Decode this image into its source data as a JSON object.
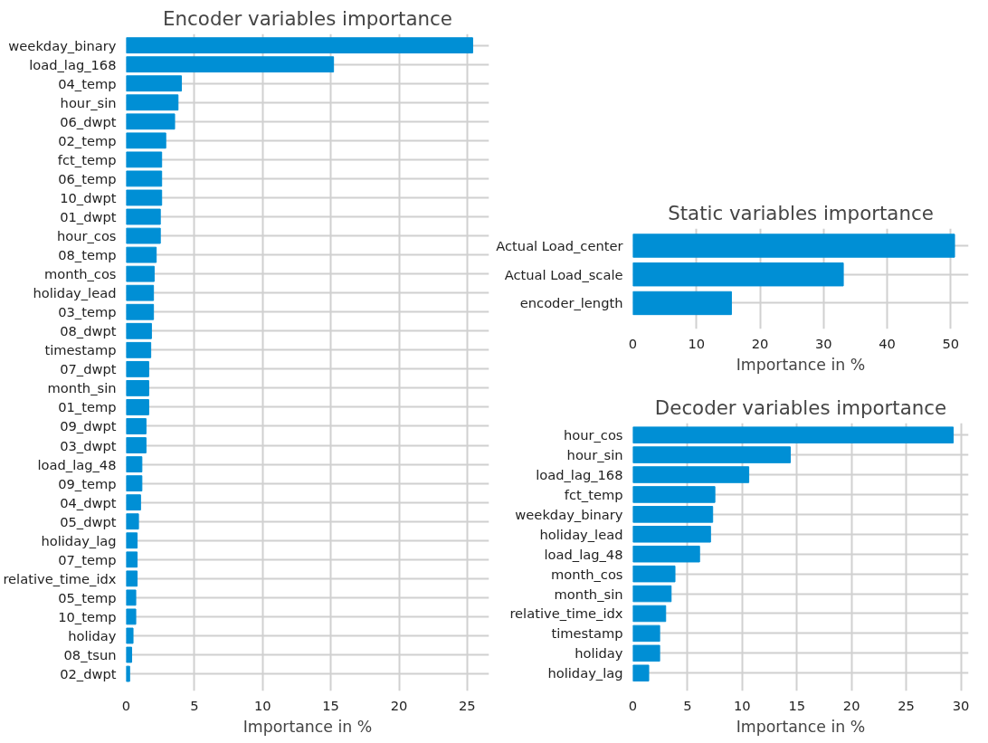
{
  "chart_data": [
    {
      "type": "bar",
      "orientation": "horizontal",
      "title": "Encoder variables importance",
      "xlabel": "Importance in %",
      "categories": [
        "weekday_binary",
        "load_lag_168",
        "04_temp",
        "hour_sin",
        "06_dwpt",
        "02_temp",
        "fct_temp",
        "06_temp",
        "10_dwpt",
        "01_dwpt",
        "hour_cos",
        "08_temp",
        "month_cos",
        "holiday_lead",
        "03_temp",
        "08_dwpt",
        "timestamp",
        "07_dwpt",
        "month_sin",
        "01_temp",
        "09_dwpt",
        "03_dwpt",
        "load_lag_48",
        "09_temp",
        "04_dwpt",
        "05_dwpt",
        "holiday_lag",
        "07_temp",
        "relative_time_idx",
        "05_temp",
        "10_temp",
        "holiday",
        "08_tsun",
        "02_dwpt"
      ],
      "values": [
        25.4,
        15.2,
        4.05,
        3.8,
        3.55,
        2.9,
        2.6,
        2.6,
        2.6,
        2.5,
        2.5,
        2.2,
        2.05,
        2.0,
        2.0,
        1.85,
        1.8,
        1.65,
        1.65,
        1.65,
        1.45,
        1.45,
        1.15,
        1.15,
        1.05,
        0.9,
        0.8,
        0.8,
        0.8,
        0.7,
        0.7,
        0.5,
        0.4,
        0.25
      ],
      "color": "#008fd5",
      "xlim": [
        0,
        26.6
      ],
      "xticks": [
        0,
        5,
        10,
        15,
        20,
        25
      ],
      "grid": true
    },
    {
      "type": "bar",
      "orientation": "horizontal",
      "title": "Static variables importance",
      "xlabel": "Importance in %",
      "categories": [
        "Actual Load_center",
        "Actual Load_scale",
        "encoder_length"
      ],
      "values": [
        50.6,
        33.1,
        15.5
      ],
      "color": "#008fd5",
      "xlim": [
        0,
        52.8
      ],
      "xticks": [
        0,
        10,
        20,
        30,
        40,
        50
      ],
      "grid": true
    },
    {
      "type": "bar",
      "orientation": "horizontal",
      "title": "Decoder variables importance",
      "xlabel": "Importance in %",
      "categories": [
        "hour_cos",
        "hour_sin",
        "load_lag_168",
        "fct_temp",
        "weekday_binary",
        "holiday_lead",
        "load_lag_48",
        "month_cos",
        "month_sin",
        "relative_time_idx",
        "timestamp",
        "holiday",
        "holiday_lag"
      ],
      "values": [
        29.3,
        14.4,
        10.6,
        7.5,
        7.3,
        7.1,
        6.1,
        3.85,
        3.5,
        3.0,
        2.45,
        2.45,
        1.45
      ],
      "color": "#008fd5",
      "xlim": [
        0,
        30.7
      ],
      "xticks": [
        0,
        5,
        10,
        15,
        20,
        25,
        30
      ],
      "grid": true
    }
  ]
}
